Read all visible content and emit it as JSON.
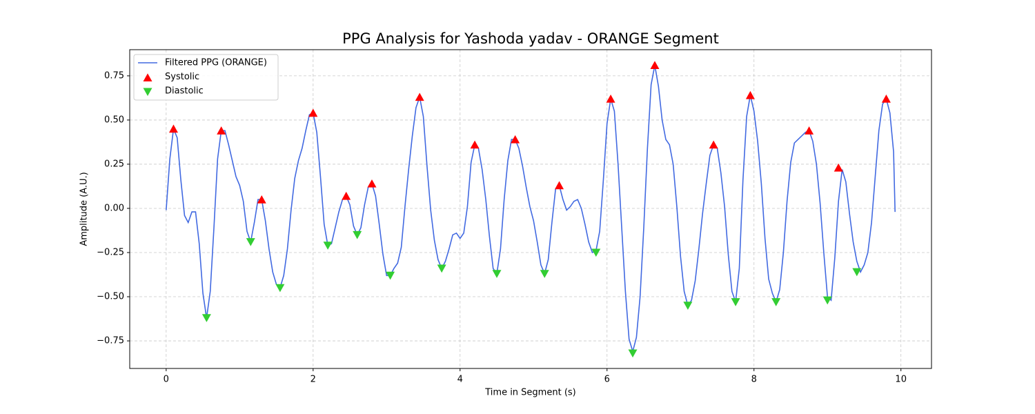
{
  "chart_data": {
    "type": "line",
    "title": "PPG Analysis for Yashoda yadav - ORANGE Segment",
    "x_label": "Time in Segment (s)",
    "y_label": "Amplitude (A.U.)",
    "xlim": [
      -0.496,
      10.416
    ],
    "ylim": [
      -0.906,
      0.898
    ],
    "xticks": [
      0,
      2,
      4,
      6,
      8,
      10
    ],
    "yticks": [
      {
        "value": -0.75,
        "label": "−0.75"
      },
      {
        "value": -0.5,
        "label": "−0.50"
      },
      {
        "value": -0.25,
        "label": "−0.25"
      },
      {
        "value": 0,
        "label": "0.00"
      },
      0.25,
      {
        "value": 0.5,
        "label": "0.50"
      },
      0.75
    ],
    "grid": true,
    "legend": "upper left",
    "x": [
      0,
      0.05,
      0.1,
      0.15,
      0.2,
      0.25,
      0.3,
      0.35,
      0.4,
      0.45,
      0.5,
      0.55,
      0.6,
      0.65,
      0.7,
      0.75,
      0.8,
      0.85,
      0.9,
      0.95,
      1.0,
      1.05,
      1.1,
      1.15,
      1.2,
      1.25,
      1.3,
      1.35,
      1.4,
      1.45,
      1.5,
      1.55,
      1.6,
      1.65,
      1.7,
      1.75,
      1.8,
      1.85,
      1.9,
      1.95,
      2.0,
      2.05,
      2.1,
      2.15,
      2.2,
      2.25,
      2.3,
      2.35,
      2.4,
      2.45,
      2.5,
      2.55,
      2.6,
      2.65,
      2.7,
      2.75,
      2.8,
      2.85,
      2.9,
      2.95,
      3.0,
      3.05,
      3.1,
      3.15,
      3.2,
      3.25,
      3.3,
      3.35,
      3.4,
      3.45,
      3.5,
      3.55,
      3.6,
      3.65,
      3.7,
      3.75,
      3.8,
      3.85,
      3.9,
      3.95,
      4.0,
      4.05,
      4.1,
      4.15,
      4.2,
      4.25,
      4.3,
      4.35,
      4.4,
      4.45,
      4.5,
      4.55,
      4.6,
      4.65,
      4.7,
      4.75,
      4.8,
      4.85,
      4.9,
      4.95,
      5.0,
      5.05,
      5.1,
      5.15,
      5.2,
      5.25,
      5.3,
      5.35,
      5.4,
      5.45,
      5.5,
      5.55,
      5.6,
      5.65,
      5.7,
      5.75,
      5.8,
      5.85,
      5.9,
      5.95,
      6.0,
      6.05,
      6.1,
      6.15,
      6.2,
      6.25,
      6.3,
      6.35,
      6.4,
      6.45,
      6.5,
      6.55,
      6.6,
      6.65,
      6.7,
      6.75,
      6.8,
      6.85,
      6.9,
      6.95,
      7.0,
      7.05,
      7.1,
      7.15,
      7.2,
      7.25,
      7.3,
      7.35,
      7.4,
      7.45,
      7.5,
      7.55,
      7.6,
      7.65,
      7.7,
      7.75,
      7.8,
      7.85,
      7.9,
      7.95,
      8.0,
      8.05,
      8.1,
      8.15,
      8.2,
      8.25,
      8.3,
      8.35,
      8.4,
      8.45,
      8.5,
      8.55,
      8.6,
      8.65,
      8.7,
      8.75,
      8.8,
      8.85,
      8.9,
      8.95,
      9.0,
      9.05,
      9.1,
      9.15,
      9.2,
      9.25,
      9.3,
      9.35,
      9.4,
      9.45,
      9.5,
      9.55,
      9.6,
      9.65,
      9.7,
      9.75,
      9.8,
      9.85,
      9.9,
      9.92
    ],
    "series": [
      {
        "name": "Filtered PPG (ORANGE)",
        "color": "#4169e1",
        "values": [
          -0.01,
          0.28,
          0.45,
          0.4,
          0.16,
          -0.04,
          -0.08,
          -0.02,
          -0.02,
          -0.2,
          -0.48,
          -0.62,
          -0.47,
          -0.11,
          0.28,
          0.44,
          0.44,
          0.36,
          0.27,
          0.18,
          0.13,
          0.04,
          -0.13,
          -0.19,
          -0.08,
          0.05,
          0.05,
          -0.07,
          -0.23,
          -0.36,
          -0.43,
          -0.45,
          -0.38,
          -0.23,
          -0.01,
          0.17,
          0.27,
          0.34,
          0.44,
          0.53,
          0.54,
          0.43,
          0.18,
          -0.09,
          -0.21,
          -0.2,
          -0.11,
          -0.02,
          0.05,
          0.07,
          0.02,
          -0.1,
          -0.15,
          -0.11,
          0.02,
          0.12,
          0.14,
          0.07,
          -0.09,
          -0.26,
          -0.38,
          -0.38,
          -0.34,
          -0.31,
          -0.22,
          0.01,
          0.22,
          0.41,
          0.57,
          0.63,
          0.52,
          0.24,
          -0.01,
          -0.18,
          -0.29,
          -0.34,
          -0.3,
          -0.23,
          -0.15,
          -0.14,
          -0.17,
          -0.14,
          0.01,
          0.26,
          0.36,
          0.34,
          0.22,
          0.05,
          -0.16,
          -0.34,
          -0.37,
          -0.23,
          0.05,
          0.27,
          0.39,
          0.39,
          0.34,
          0.24,
          0.12,
          0.01,
          -0.07,
          -0.19,
          -0.32,
          -0.37,
          -0.29,
          -0.08,
          0.11,
          0.13,
          0.05,
          -0.01,
          0.01,
          0.04,
          0.05,
          0.0,
          -0.09,
          -0.19,
          -0.25,
          -0.24,
          -0.13,
          0.16,
          0.48,
          0.62,
          0.55,
          0.25,
          -0.11,
          -0.47,
          -0.74,
          -0.81,
          -0.73,
          -0.5,
          -0.11,
          0.34,
          0.7,
          0.81,
          0.69,
          0.5,
          0.39,
          0.36,
          0.25,
          0.01,
          -0.27,
          -0.47,
          -0.55,
          -0.52,
          -0.41,
          -0.23,
          -0.03,
          0.14,
          0.3,
          0.36,
          0.34,
          0.2,
          0.01,
          -0.26,
          -0.47,
          -0.53,
          -0.34,
          0.16,
          0.52,
          0.64,
          0.55,
          0.38,
          0.14,
          -0.17,
          -0.4,
          -0.48,
          -0.53,
          -0.46,
          -0.25,
          0.04,
          0.26,
          0.37,
          0.39,
          0.41,
          0.43,
          0.44,
          0.38,
          0.25,
          0.03,
          -0.25,
          -0.5,
          -0.52,
          -0.28,
          0.04,
          0.22,
          0.15,
          -0.03,
          -0.19,
          -0.3,
          -0.36,
          -0.32,
          -0.25,
          -0.08,
          0.18,
          0.44,
          0.59,
          0.62,
          0.54,
          0.32,
          -0.02
        ]
      },
      {
        "name": "Systolic",
        "color": "#ff0000",
        "marker": "^",
        "x": [
          0.1,
          0.75,
          1.3,
          2.0,
          2.45,
          2.8,
          3.45,
          4.2,
          4.75,
          5.35,
          6.05,
          6.65,
          7.45,
          7.95,
          8.75,
          9.15,
          9.8
        ],
        "values": [
          0.45,
          0.44,
          0.05,
          0.54,
          0.07,
          0.14,
          0.63,
          0.36,
          0.39,
          0.13,
          0.62,
          0.81,
          0.36,
          0.64,
          0.44,
          0.23,
          0.62
        ]
      },
      {
        "name": "Diastolic",
        "color": "#32cd32",
        "marker": "v",
        "x": [
          0.55,
          1.15,
          1.55,
          2.2,
          2.6,
          3.05,
          3.75,
          4.5,
          5.15,
          5.85,
          6.35,
          7.1,
          7.75,
          8.3,
          9.0,
          9.4
        ],
        "values": [
          -0.62,
          -0.19,
          -0.45,
          -0.21,
          -0.15,
          -0.38,
          -0.34,
          -0.37,
          -0.37,
          -0.25,
          -0.82,
          -0.55,
          -0.53,
          -0.53,
          -0.52,
          -0.36
        ]
      }
    ]
  }
}
